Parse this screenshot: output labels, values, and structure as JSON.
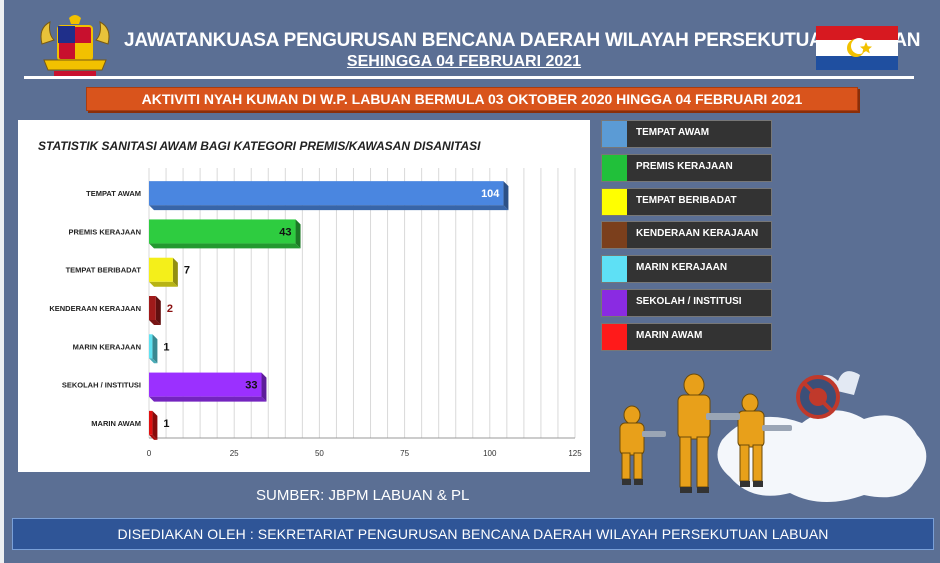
{
  "header": {
    "title": "JAWATANKUASA PENGURUSAN BENCANA DAERAH WILAYAH PERSEKUTUAN  LABUAN",
    "subtitle": "SEHINGGA 04 FEBRUARI 2021",
    "banner": "AKTIVITI NYAH KUMAN DI W.P. LABUAN BERMULA 03 OKTOBER 2020 HINGGA 04 FEBRUARI 2021"
  },
  "colors": {
    "background": "#5b6f94",
    "banner": "#d9541c",
    "footer": "#2f5597",
    "flag_red": "#d71920",
    "flag_blue": "#1f4fa0",
    "flag_yellow": "#f2c100"
  },
  "chart_data": {
    "type": "bar",
    "orientation": "horizontal",
    "title": "STATISTIK SANITASI AWAM BAGI KATEGORI PREMIS/KAWASAN DISANITASI",
    "categories": [
      "TEMPAT AWAM",
      "PREMIS KERAJAAN",
      "TEMPAT BERIBADAT",
      "KENDERAAN KERAJAAN",
      "MARIN KERAJAAN",
      "SEKOLAH / INSTITUSI",
      "MARIN AWAM"
    ],
    "values": [
      104,
      43,
      7,
      2,
      1,
      33,
      1
    ],
    "colors": [
      "#4a86e0",
      "#2ecc40",
      "#f4ef1a",
      "#a01a1a",
      "#5fe2f2",
      "#9b30ff",
      "#e11010"
    ],
    "xlim": [
      0,
      125
    ],
    "xticks": [
      "0",
      "25",
      "50",
      "75",
      "100",
      "125"
    ],
    "grid": true,
    "legend_position": "right"
  },
  "legend": [
    {
      "label": "TEMPAT AWAM",
      "color": "#5b9bd5"
    },
    {
      "label": "PREMIS KERAJAAN",
      "color": "#21c03a"
    },
    {
      "label": "TEMPAT BERIBADAT",
      "color": "#ffff00"
    },
    {
      "label": "KENDERAAN KERAJAAN",
      "color": "#7b3f1c"
    },
    {
      "label": "MARIN KERAJAAN",
      "color": "#5ee0f5"
    },
    {
      "label": "SEKOLAH / INSTITUSI",
      "color": "#8a2be2"
    },
    {
      "label": "MARIN AWAM",
      "color": "#ff1a1a"
    }
  ],
  "source": "SUMBER: JBPM LABUAN & PL",
  "footer": "DISEDIAKAN OLEH : SEKRETARIAT PENGURUSAN BENCANA DAERAH WILAYAH PERSEKUTUAN LABUAN",
  "icons": {
    "logo": "coat-of-arms-icon",
    "flag": "labuan-flag-icon",
    "illustration": "sanitation-workers-icon",
    "virus": "no-virus-icon"
  }
}
